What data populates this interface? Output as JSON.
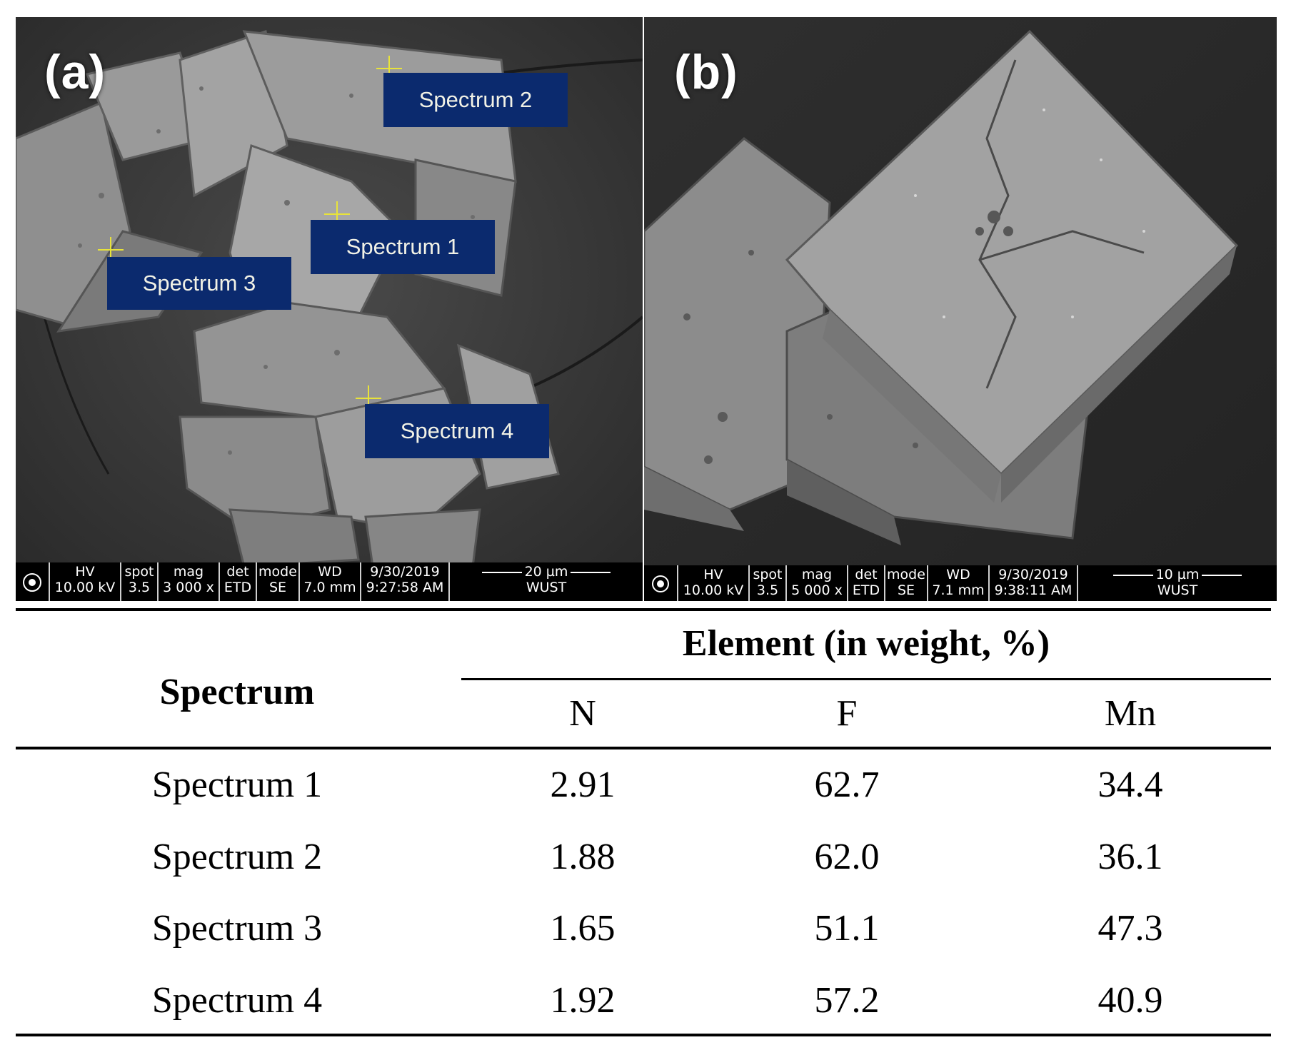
{
  "panel_a": {
    "label": "(a)",
    "spectrum_labels": [
      "Spectrum 2",
      "Spectrum 1",
      "Spectrum 3",
      "Spectrum 4"
    ],
    "databar": {
      "headers": [
        "HV",
        "spot",
        "mag",
        "det",
        "mode",
        "WD",
        "9/30/2019"
      ],
      "values": [
        "10.00 kV",
        "3.5",
        "3 000 x",
        "ETD",
        "SE",
        "7.0 mm",
        "9:27:58 AM"
      ],
      "scale": "20 µm",
      "org": "WUST"
    }
  },
  "panel_b": {
    "label": "(b)",
    "databar": {
      "headers": [
        "HV",
        "spot",
        "mag",
        "det",
        "mode",
        "WD",
        "9/30/2019"
      ],
      "values": [
        "10.00 kV",
        "3.5",
        "5 000 x",
        "ETD",
        "SE",
        "7.1 mm",
        "9:38:11 AM"
      ],
      "scale": "10 µm",
      "org": "WUST"
    }
  },
  "table": {
    "row_header": "Spectrum",
    "group_header": "Element (in weight, %)",
    "columns": [
      "N",
      "F",
      "Mn"
    ],
    "rows": [
      {
        "name": "Spectrum 1",
        "values": [
          "2.91",
          "62.7",
          "34.4"
        ]
      },
      {
        "name": "Spectrum 2",
        "values": [
          "1.88",
          "62.0",
          "36.1"
        ]
      },
      {
        "name": "Spectrum 3",
        "values": [
          "1.65",
          "51.1",
          "47.3"
        ]
      },
      {
        "name": "Spectrum 4",
        "values": [
          "1.92",
          "57.2",
          "40.9"
        ]
      }
    ]
  }
}
